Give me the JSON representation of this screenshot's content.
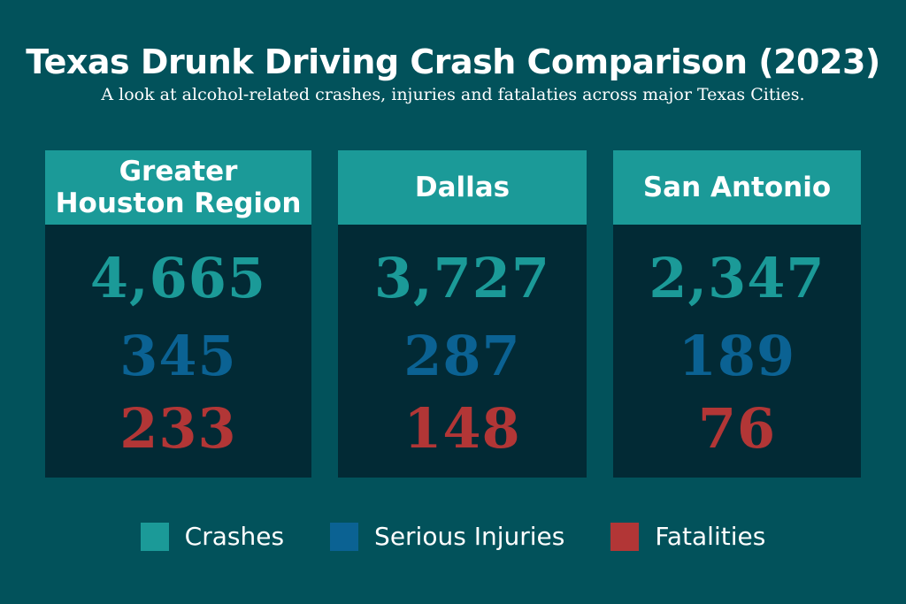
{
  "title": "Texas Drunk Driving Crash Comparison (2023)",
  "subtitle": "A look at alcohol-related crashes, injuries and fatalaties across major Texas Cities.",
  "colors": {
    "crashes": "#1b9a98",
    "serious_injuries": "#0b6293",
    "fatalities": "#b23636",
    "background": "#02525b",
    "panel": "#022a35"
  },
  "cities": [
    {
      "name": "Greater Houston Region",
      "crashes": "4,665",
      "serious_injuries": "345",
      "fatalities": "233"
    },
    {
      "name": "Dallas",
      "crashes": "3,727",
      "serious_injuries": "287",
      "fatalities": "148"
    },
    {
      "name": "San Antonio",
      "crashes": "2,347",
      "serious_injuries": "189",
      "fatalities": "76"
    }
  ],
  "legend": [
    {
      "label": "Crashes"
    },
    {
      "label": "Serious Injuries"
    },
    {
      "label": "Fatalities"
    }
  ]
}
